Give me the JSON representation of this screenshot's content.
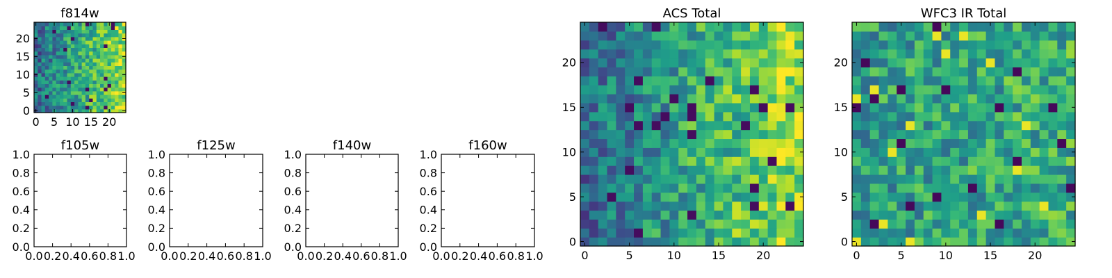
{
  "chart_data": [
    {
      "id": "f814w",
      "type": "heatmap",
      "title": "f814w",
      "xlabel": "",
      "ylabel": "",
      "xlim": [
        -0.5,
        24.5
      ],
      "ylim": [
        -0.5,
        24.5
      ],
      "xticks": [
        0,
        5,
        10,
        15,
        20
      ],
      "yticks": [
        0,
        5,
        10,
        15,
        20
      ],
      "origin": "lower",
      "colormap": "viridis",
      "grid_size": [
        25,
        25
      ],
      "value_range": [
        0,
        1
      ],
      "gradient_note": "values rise from left to right"
    },
    {
      "id": "f105w",
      "type": "scatter",
      "title": "f105w",
      "xlim": [
        0,
        1
      ],
      "ylim": [
        0,
        1
      ],
      "xticks": [
        "0.0",
        "0.2",
        "0.4",
        "0.6",
        "0.8",
        "1.0"
      ],
      "yticks": [
        "0.0",
        "0.2",
        "0.4",
        "0.6",
        "0.8",
        "1.0"
      ],
      "values": []
    },
    {
      "id": "f125w",
      "type": "scatter",
      "title": "f125w",
      "xlim": [
        0,
        1
      ],
      "ylim": [
        0,
        1
      ],
      "xticks": [
        "0.0",
        "0.2",
        "0.4",
        "0.6",
        "0.8",
        "1.0"
      ],
      "yticks": [
        "0.0",
        "0.2",
        "0.4",
        "0.6",
        "0.8",
        "1.0"
      ],
      "values": []
    },
    {
      "id": "f140w",
      "type": "scatter",
      "title": "f140w",
      "xlim": [
        0,
        1
      ],
      "ylim": [
        0,
        1
      ],
      "xticks": [
        "0.0",
        "0.2",
        "0.4",
        "0.6",
        "0.8",
        "1.0"
      ],
      "yticks": [
        "0.0",
        "0.2",
        "0.4",
        "0.6",
        "0.8",
        "1.0"
      ],
      "values": []
    },
    {
      "id": "f160w",
      "type": "scatter",
      "title": "f160w",
      "xlim": [
        0,
        1
      ],
      "ylim": [
        0,
        1
      ],
      "xticks": [
        "0.0",
        "0.2",
        "0.4",
        "0.6",
        "0.8",
        "1.0"
      ],
      "yticks": [
        "0.0",
        "0.2",
        "0.4",
        "0.6",
        "0.8",
        "1.0"
      ],
      "values": []
    },
    {
      "id": "acs-total",
      "type": "heatmap",
      "title": "ACS Total",
      "xlim": [
        -0.5,
        24.5
      ],
      "ylim": [
        -0.5,
        24.5
      ],
      "xticks": [
        0,
        5,
        10,
        15,
        20
      ],
      "yticks": [
        0,
        5,
        10,
        15,
        20
      ],
      "origin": "lower",
      "colormap": "viridis",
      "grid_size": [
        25,
        25
      ],
      "value_range": [
        0,
        1
      ],
      "gradient_note": "values rise from left to right"
    },
    {
      "id": "wfc3-ir-total",
      "type": "heatmap",
      "title": "WFC3 IR Total",
      "xlim": [
        -0.5,
        24.5
      ],
      "ylim": [
        -0.5,
        24.5
      ],
      "xticks": [
        0,
        5,
        10,
        15,
        20
      ],
      "yticks": [
        0,
        5,
        10,
        15,
        20
      ],
      "origin": "lower",
      "colormap": "viridis",
      "grid_size": [
        25,
        25
      ],
      "value_range": [
        0,
        1
      ],
      "gradient_note": "noisy, mostly mid-range with scattered bright and dark pixels"
    }
  ]
}
